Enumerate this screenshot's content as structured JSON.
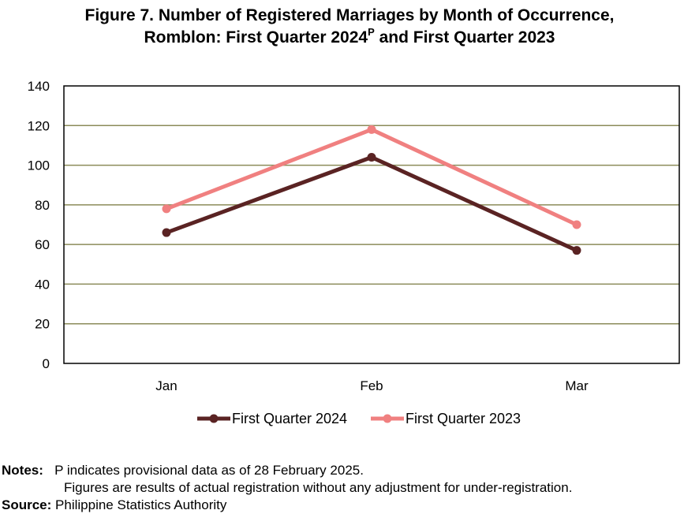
{
  "title": {
    "line1": "Figure 7. Number of Registered Marriages by Month of Occurrence,",
    "line2_before": "Romblon: First Quarter 2024",
    "line2_sup": "P",
    "line2_after": " and First Quarter 2023"
  },
  "chart_data": {
    "type": "line",
    "title": "Figure 7. Number of Registered Marriages by Month of Occurrence, Romblon: First Quarter 2024P and First Quarter 2023",
    "categories": [
      "Jan",
      "Feb",
      "Mar"
    ],
    "series": [
      {
        "name": "First Quarter 2024",
        "values": [
          66,
          104,
          57
        ],
        "color": "#5a2323"
      },
      {
        "name": "First Quarter 2023",
        "values": [
          78,
          118,
          70
        ],
        "color": "#f08080"
      }
    ],
    "ylim": [
      0,
      140
    ],
    "yticks": [
      0,
      20,
      40,
      60,
      80,
      100,
      120,
      140
    ],
    "grid": true,
    "gridColor": "#8b8b5a",
    "legend": "bottom"
  },
  "notes": {
    "label": "Notes:",
    "line1": "P indicates provisional data as of 28 February 2025.",
    "line2": "Figures are results of actual registration without any adjustment for under-registration."
  },
  "source": {
    "label": "Source:",
    "text": "Philippine Statistics Authority"
  }
}
